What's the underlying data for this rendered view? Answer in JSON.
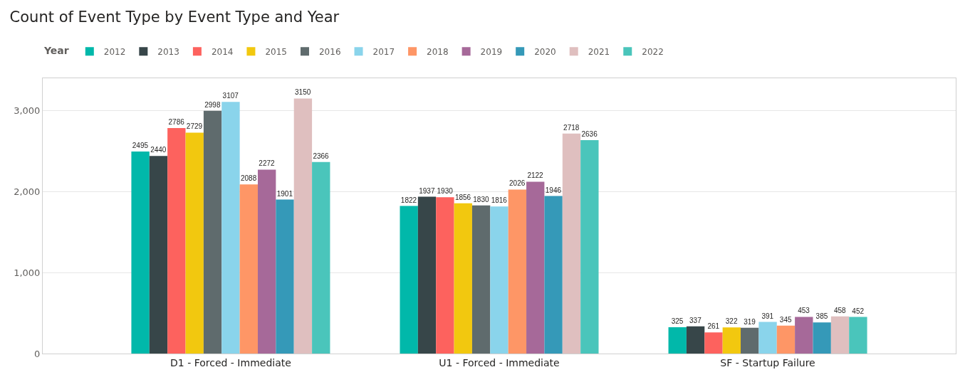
{
  "chart_data": {
    "type": "bar",
    "title": "Count of Event Type by Event Type and Year",
    "legend_title": "Year",
    "legend": "top left",
    "grid": "y",
    "data_labels": true,
    "categories": [
      "D1 - Forced - Immediate",
      "U1 - Forced - Immediate",
      "SF - Startup Failure"
    ],
    "ylim": [
      0,
      3400
    ],
    "yticks": [
      0,
      {
        "value": 1000,
        "label": "1,000"
      },
      {
        "value": 2000,
        "label": "2,000"
      },
      {
        "value": 3000,
        "label": "3,000"
      }
    ],
    "series": [
      {
        "name": "2012",
        "color": "#01b8aa",
        "values": [
          2495,
          1822,
          325
        ]
      },
      {
        "name": "2013",
        "color": "#374649",
        "values": [
          2440,
          1937,
          337
        ]
      },
      {
        "name": "2014",
        "color": "#fd625e",
        "values": [
          2786,
          1930,
          261
        ]
      },
      {
        "name": "2015",
        "color": "#f2c80f",
        "values": [
          2729,
          1856,
          322
        ]
      },
      {
        "name": "2016",
        "color": "#5f6b6d",
        "values": [
          2998,
          1830,
          319
        ]
      },
      {
        "name": "2017",
        "color": "#8ad4eb",
        "values": [
          3107,
          1816,
          391
        ]
      },
      {
        "name": "2018",
        "color": "#fe9666",
        "values": [
          2088,
          2026,
          345
        ]
      },
      {
        "name": "2019",
        "color": "#a66999",
        "values": [
          2272,
          2122,
          453
        ]
      },
      {
        "name": "2020",
        "color": "#3599b8",
        "values": [
          1901,
          1946,
          385
        ]
      },
      {
        "name": "2021",
        "color": "#dfbfbf",
        "values": [
          3150,
          2718,
          458
        ]
      },
      {
        "name": "2022",
        "color": "#4ac5bb",
        "values": [
          2366,
          2636,
          452
        ]
      }
    ]
  }
}
